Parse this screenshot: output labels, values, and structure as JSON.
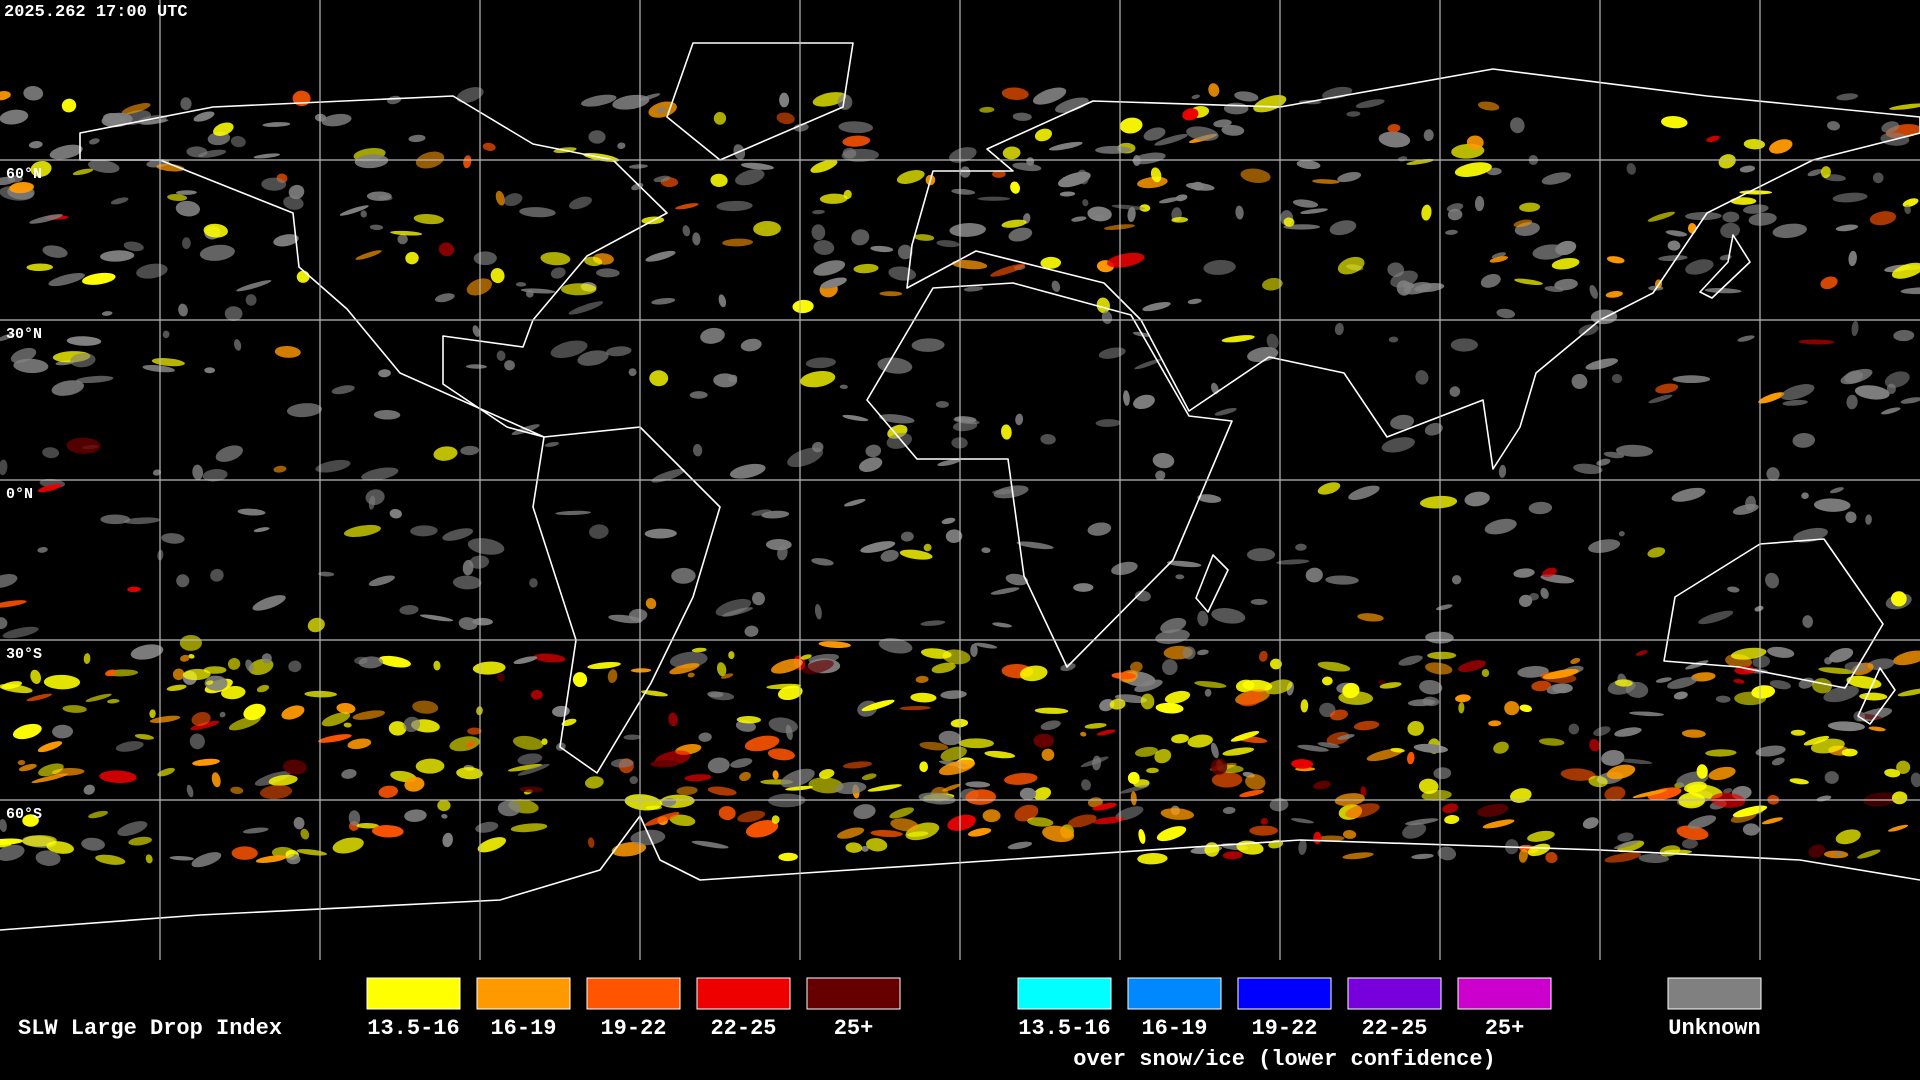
{
  "timestamp": "2025.262 17:00 UTC",
  "map": {
    "lat_labels": [
      "60°N",
      "30°N",
      "0°N",
      "30°S",
      "60°S"
    ]
  },
  "legend": {
    "title": "SLW Large Drop Index",
    "groups": [
      {
        "items": [
          {
            "label": "13.5-16",
            "color": "#ffff00"
          },
          {
            "label": "16-19",
            "color": "#ff9900"
          },
          {
            "label": "19-22",
            "color": "#ff5500"
          },
          {
            "label": "22-25",
            "color": "#ee0000"
          },
          {
            "label": "25+",
            "color": "#660000"
          }
        ]
      },
      {
        "items": [
          {
            "label": "13.5-16",
            "color": "#00ffff"
          },
          {
            "label": "16-19",
            "color": "#0088ff"
          },
          {
            "label": "19-22",
            "color": "#0000ff"
          },
          {
            "label": "22-25",
            "color": "#7700dd"
          },
          {
            "label": "25+",
            "color": "#cc00cc"
          }
        ],
        "caption": "over snow/ice (lower confidence)"
      }
    ],
    "unknown": {
      "label": "Unknown",
      "color": "#808080"
    }
  }
}
